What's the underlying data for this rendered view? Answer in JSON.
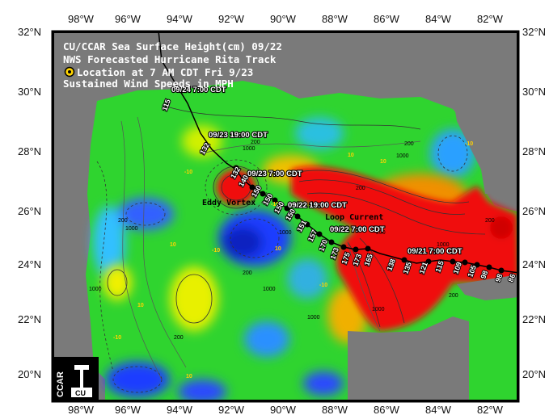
{
  "header": {
    "line1": "CU/CCAR Sea Surface Height(cm) 09/22",
    "line2": "NWS Forecasted Hurricane Rita Track",
    "line3": "Location at 7 AM CDT Fri 9/23",
    "line4": "Sustained Wind Speeds in MPH"
  },
  "axes": {
    "lon_top": [
      "98°W",
      "96°W",
      "94°W",
      "92°W",
      "90°W",
      "88°W",
      "86°W",
      "84°W",
      "82°W"
    ],
    "lon_bottom": [
      "98°W",
      "96°W",
      "94°W",
      "92°W",
      "90°W",
      "88°W",
      "86°W",
      "84°W",
      "82°W"
    ],
    "lat_left": [
      "32°N",
      "30°N",
      "28°N",
      "26°N",
      "24°N",
      "22°N",
      "20°N"
    ],
    "lat_right": [
      "32°N",
      "30°N",
      "28°N",
      "26°N",
      "24°N",
      "22°N",
      "20°N"
    ]
  },
  "track_labels": [
    "09/24 7:00 CDT",
    "09/23 19:00 CDT",
    "09/23 7:00 CDT",
    "09/22 19:00 CDT",
    "09/22 7:00 CDT",
    "09/21 7:00 CDT"
  ],
  "speeds": [
    "115",
    "132",
    "132",
    "140",
    "150",
    "150",
    "150",
    "150",
    "151",
    "157",
    "170",
    "173",
    "175",
    "173",
    "165",
    "138",
    "135",
    "121",
    "115",
    "109",
    "105",
    "98",
    "98",
    "86"
  ],
  "features": {
    "eddy": "Eddy Vortex",
    "loop": "Loop Current"
  },
  "contour_labels": [
    "200",
    "200",
    "1000",
    "1000",
    "1000",
    "1000",
    "1000",
    "1000",
    "1000",
    "1000",
    "200",
    "200",
    "200",
    "200",
    "200",
    "200",
    "1000",
    "200"
  ],
  "ssh_labels": [
    "-10",
    "10",
    "-10",
    "10",
    "-10",
    "10",
    "10",
    "-10",
    "10",
    "-10",
    "10",
    "-10"
  ],
  "logo": {
    "text": "CCAR"
  },
  "colors": {
    "land": "#7a7a7a",
    "deep_blue": "#1f3cff",
    "green": "#2fd42f",
    "yellow": "#f0f000",
    "red": "#f01010",
    "track": "#000000",
    "location_marker": "#ffd400"
  }
}
